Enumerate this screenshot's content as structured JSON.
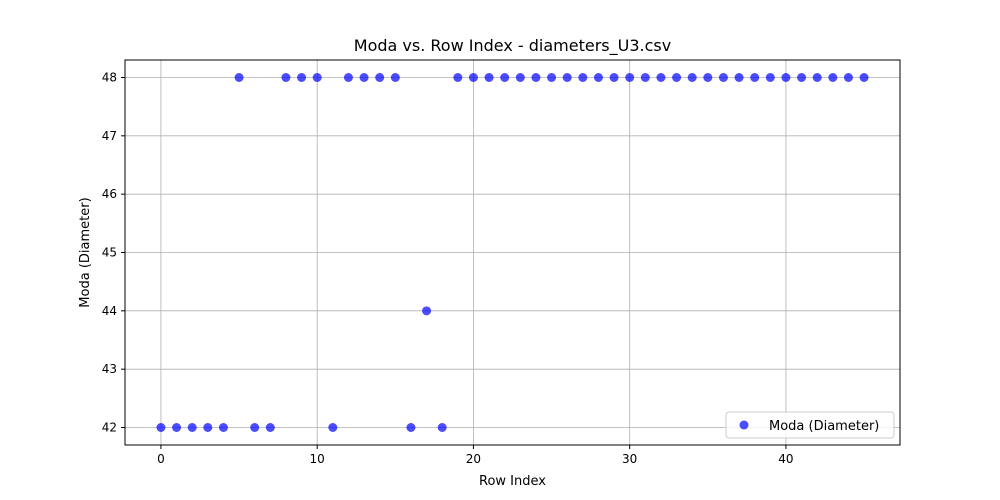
{
  "chart_data": {
    "type": "scatter",
    "title": "Moda vs. Row Index - diameters_U3.csv",
    "xlabel": "Row Index",
    "ylabel": "Moda (Diameter)",
    "xlim": [
      -2.3,
      47.3
    ],
    "ylim": [
      41.7,
      48.3
    ],
    "xticks": [
      0,
      10,
      20,
      30,
      40
    ],
    "yticks": [
      42,
      43,
      44,
      45,
      46,
      47,
      48
    ],
    "grid": true,
    "legend_position": "lower-right",
    "series": [
      {
        "name": "Moda (Diameter)",
        "color": "#0000ff",
        "x": [
          0,
          1,
          2,
          3,
          4,
          5,
          6,
          7,
          8,
          9,
          10,
          11,
          12,
          13,
          14,
          15,
          16,
          17,
          18,
          19,
          20,
          21,
          22,
          23,
          24,
          25,
          26,
          27,
          28,
          29,
          30,
          31,
          32,
          33,
          34,
          35,
          36,
          37,
          38,
          39,
          40,
          41,
          42,
          43,
          44,
          45
        ],
        "y": [
          42,
          42,
          42,
          42,
          42,
          48,
          42,
          42,
          48,
          48,
          48,
          42,
          48,
          48,
          48,
          48,
          42,
          44,
          42,
          48,
          48,
          48,
          48,
          48,
          48,
          48,
          48,
          48,
          48,
          48,
          48,
          48,
          48,
          48,
          48,
          48,
          48,
          48,
          48,
          48,
          48,
          48,
          48,
          48,
          48,
          48
        ]
      }
    ]
  }
}
